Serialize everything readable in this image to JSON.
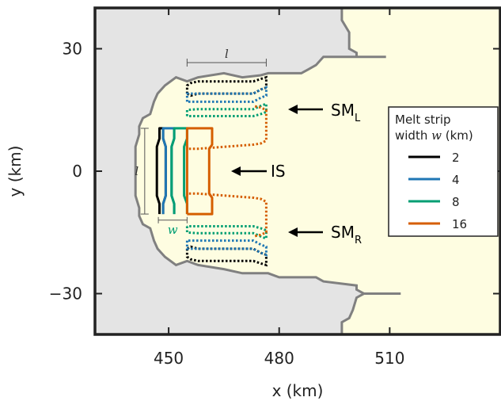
{
  "chart_data": {
    "type": "line",
    "xlabel": "x (km)",
    "ylabel": "y (km)",
    "xlim": [
      430,
      540
    ],
    "ylim": [
      -40,
      40
    ],
    "xticks": [
      450,
      480,
      510
    ],
    "yticks": [
      30,
      0,
      -30
    ],
    "ytick_labels": [
      "30",
      "0",
      "−30"
    ],
    "grid": false,
    "colors": {
      "grounded": "#e4e4e4",
      "shelf": "#fefde1",
      "ocean": "#fefde1",
      "outline": "#808080"
    },
    "outline_left": [
      [
        497,
        40
      ],
      [
        497,
        37
      ],
      [
        499,
        34
      ],
      [
        499,
        30
      ],
      [
        501,
        29
      ],
      [
        501,
        28
      ],
      [
        509,
        28
      ],
      [
        492,
        28
      ],
      [
        490,
        26
      ],
      [
        488,
        25
      ],
      [
        486,
        24
      ],
      [
        477,
        24
      ],
      [
        475,
        23.5
      ],
      [
        470,
        23
      ],
      [
        465,
        24
      ],
      [
        458,
        23
      ],
      [
        455,
        22
      ],
      [
        452,
        23
      ],
      [
        449,
        21
      ],
      [
        447,
        19
      ],
      [
        446,
        17
      ],
      [
        445,
        14
      ],
      [
        443,
        13
      ],
      [
        442,
        11
      ],
      [
        442,
        9
      ],
      [
        441,
        6
      ],
      [
        441,
        -6
      ],
      [
        442,
        -9
      ],
      [
        442,
        -11
      ],
      [
        443,
        -13
      ],
      [
        445,
        -14
      ],
      [
        446,
        -17
      ],
      [
        447,
        -19
      ],
      [
        449,
        -21
      ],
      [
        452,
        -23
      ],
      [
        455,
        -22
      ],
      [
        458,
        -23
      ],
      [
        465,
        -24
      ],
      [
        470,
        -25
      ],
      [
        477,
        -25
      ],
      [
        480,
        -26
      ],
      [
        490,
        -26
      ],
      [
        492,
        -27
      ],
      [
        501,
        -28
      ],
      [
        501,
        -29
      ],
      [
        503,
        -30
      ],
      [
        513,
        -30
      ],
      [
        503,
        -30
      ],
      [
        501,
        -31
      ],
      [
        500,
        -34
      ],
      [
        499,
        -36
      ],
      [
        497,
        -37
      ],
      [
        497,
        -40
      ]
    ],
    "series": [
      {
        "name": "2",
        "color": "#000000",
        "is": [
          [
            447.5,
            -10.5
          ],
          [
            447.5,
            -8
          ],
          [
            446.8,
            -6
          ],
          [
            446.8,
            6
          ],
          [
            447.5,
            8
          ],
          [
            447.5,
            10.5
          ],
          [
            448.5,
            10.5
          ],
          [
            448.5,
            8
          ],
          [
            449.2,
            6
          ],
          [
            449.2,
            -6
          ],
          [
            448.5,
            -8
          ],
          [
            448.5,
            -10.5
          ]
        ],
        "sm_l": [
          [
            455,
            19
          ],
          [
            455,
            21
          ],
          [
            456,
            21.6
          ],
          [
            458,
            22
          ],
          [
            473,
            22
          ],
          [
            475,
            22.6
          ],
          [
            476.5,
            23
          ],
          [
            476.5,
            20.5
          ],
          [
            475,
            20
          ],
          [
            473,
            19
          ],
          [
            458,
            19
          ],
          [
            456,
            18.5
          ],
          [
            455,
            19
          ]
        ],
        "sm_r": [
          [
            455,
            -19
          ],
          [
            455,
            -21
          ],
          [
            456,
            -21.6
          ],
          [
            458,
            -22
          ],
          [
            473,
            -22
          ],
          [
            475,
            -22.6
          ],
          [
            476.5,
            -23
          ],
          [
            476.5,
            -20.5
          ],
          [
            475,
            -20
          ],
          [
            473,
            -19
          ],
          [
            458,
            -19
          ],
          [
            456,
            -18.5
          ],
          [
            455,
            -19
          ]
        ]
      },
      {
        "name": "4",
        "color": "#1f77b4",
        "is": [
          [
            448.5,
            -10.5
          ],
          [
            448.5,
            -8
          ],
          [
            449.2,
            -6
          ],
          [
            449.2,
            6
          ],
          [
            448.5,
            8
          ],
          [
            448.5,
            10.5
          ],
          [
            451.5,
            10.5
          ],
          [
            451.5,
            8
          ],
          [
            450.8,
            6
          ],
          [
            450.8,
            -6
          ],
          [
            451.5,
            -8
          ],
          [
            451.5,
            -10.5
          ]
        ],
        "sm_l": [
          [
            455,
            17
          ],
          [
            455,
            19
          ],
          [
            458,
            19
          ],
          [
            473,
            19
          ],
          [
            475,
            20
          ],
          [
            476.5,
            20.5
          ],
          [
            476.5,
            18.5
          ],
          [
            475,
            18
          ],
          [
            473,
            17
          ],
          [
            458,
            17
          ],
          [
            455,
            17
          ]
        ],
        "sm_r": [
          [
            455,
            -17
          ],
          [
            455,
            -19
          ],
          [
            458,
            -19
          ],
          [
            473,
            -19
          ],
          [
            475,
            -20
          ],
          [
            476.5,
            -20.5
          ],
          [
            476.5,
            -18.5
          ],
          [
            475,
            -18
          ],
          [
            473,
            -17
          ],
          [
            458,
            -17
          ],
          [
            455,
            -17
          ]
        ]
      },
      {
        "name": "8",
        "color": "#009e73",
        "is": [
          [
            451.5,
            -10.5
          ],
          [
            451.5,
            -8
          ],
          [
            450.8,
            -6
          ],
          [
            450.8,
            6
          ],
          [
            451.5,
            8
          ],
          [
            451.5,
            10.5
          ],
          [
            455,
            10.5
          ],
          [
            455,
            8
          ],
          [
            454.2,
            6
          ],
          [
            454.2,
            -6
          ],
          [
            455,
            -8
          ],
          [
            455,
            -10.5
          ]
        ],
        "sm_l": [
          [
            455,
            13.5
          ],
          [
            455,
            15
          ],
          [
            458,
            15.2
          ],
          [
            473,
            15.2
          ],
          [
            475,
            16
          ],
          [
            476.5,
            16.5
          ],
          [
            476.5,
            14.5
          ],
          [
            475,
            14
          ],
          [
            473,
            13.5
          ],
          [
            458,
            13.5
          ],
          [
            455,
            13.5
          ]
        ],
        "sm_r": [
          [
            455,
            -13.5
          ],
          [
            455,
            -15
          ],
          [
            458,
            -15.2
          ],
          [
            473,
            -15.2
          ],
          [
            475,
            -16
          ],
          [
            476.5,
            -16.5
          ],
          [
            476.5,
            -14.5
          ],
          [
            475,
            -14
          ],
          [
            473,
            -13.5
          ],
          [
            458,
            -13.5
          ],
          [
            455,
            -13.5
          ]
        ]
      },
      {
        "name": "16",
        "color": "#d55e00",
        "is": [
          [
            455,
            -10.5
          ],
          [
            455,
            -6
          ],
          [
            455,
            6
          ],
          [
            455,
            10.5
          ],
          [
            461.8,
            10.5
          ],
          [
            461.8,
            6.5
          ],
          [
            461.0,
            5.5
          ],
          [
            461.0,
            -5.5
          ],
          [
            461.8,
            -6.5
          ],
          [
            461.8,
            -10.5
          ],
          [
            455,
            -10.5
          ]
        ],
        "sm_l": [
          [
            455,
            6
          ],
          [
            455,
            5.5
          ],
          [
            458,
            5.5
          ],
          [
            473,
            6.5
          ],
          [
            475,
            6.8
          ],
          [
            476.5,
            7.5
          ],
          [
            476.5,
            15
          ],
          [
            475,
            15.6
          ],
          [
            473,
            16
          ]
        ],
        "sm_r": [
          [
            455,
            -6
          ],
          [
            455,
            -5.5
          ],
          [
            458,
            -5.5
          ],
          [
            473,
            -6.5
          ],
          [
            475,
            -6.8
          ],
          [
            476.5,
            -7.5
          ],
          [
            476.5,
            -15
          ],
          [
            475,
            -15.6
          ],
          [
            473,
            -16
          ]
        ]
      }
    ],
    "annotations": {
      "sm_l": {
        "label": "SM",
        "sub": "L"
      },
      "is": {
        "label": "IS"
      },
      "sm_r": {
        "label": "SM",
        "sub": "R"
      },
      "length": "l",
      "width": "w",
      "length_vertical": "l"
    },
    "legend": {
      "title_line1": "Melt strip",
      "title_line2_prefix": "width ",
      "title_line2_var": "w",
      "title_line2_suffix": " (km)",
      "placement": "right",
      "entries": [
        "2",
        "4",
        "8",
        "16"
      ]
    }
  }
}
